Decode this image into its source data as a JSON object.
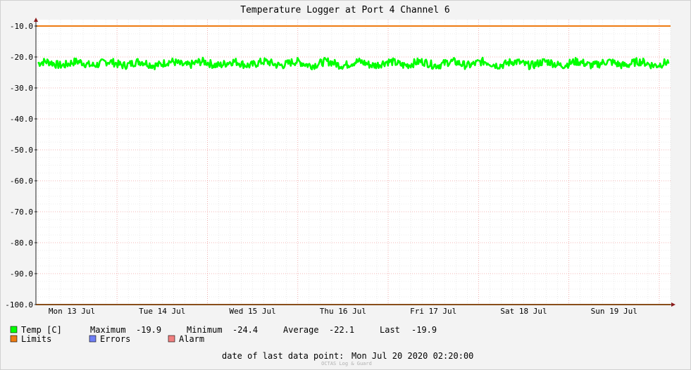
{
  "chart_data": {
    "type": "line",
    "title": "Temperature Logger at Port 4 Channel 6",
    "ylim": [
      -100,
      -10
    ],
    "y_ticks": [
      "-10.0",
      "-20.0",
      "-30.0",
      "-40.0",
      "-50.0",
      "-60.0",
      "-70.0",
      "-80.0",
      "-90.0",
      "-100.0"
    ],
    "x_tick_labels": [
      "Mon 13 Jul",
      "Tue 14 Jul",
      "Wed 15 Jul",
      "Thu 16 Jul",
      "Fri 17 Jul",
      "Sat 18 Jul",
      "Sun 19 Jul"
    ],
    "x_range": [
      "2020-07-13 02:20",
      "2020-07-20 02:20"
    ],
    "grid": true,
    "series": [
      {
        "name": "Temp [C]",
        "color": "#00ff00",
        "values_range": [
          -24.4,
          -19.9
        ],
        "typical": -22.1
      },
      {
        "name": "Limits",
        "color": "#ee7b11",
        "values": [
          -10.0,
          -100.0
        ]
      }
    ]
  },
  "legend": {
    "temp_label": "Temp [C]",
    "maximum_label": "Maximum",
    "maximum_value": "-19.9",
    "minimum_label": "Minimum",
    "minimum_value": "-24.4",
    "average_label": "Average",
    "average_value": "-22.1",
    "last_label": "Last",
    "last_value": "-19.9",
    "limits_label": "Limits",
    "errors_label": "Errors",
    "alarm_label": "Alarm"
  },
  "colors": {
    "temp": "#00ff00",
    "limits": "#ee7b11",
    "errors": "#6f7ff5",
    "alarm": "#f07f7f"
  },
  "footer": {
    "last_point_label": "date of last data point:",
    "last_point_value": "Mon Jul 20 2020 02:20:00",
    "watermark": "OCTAS Log & Guard"
  }
}
